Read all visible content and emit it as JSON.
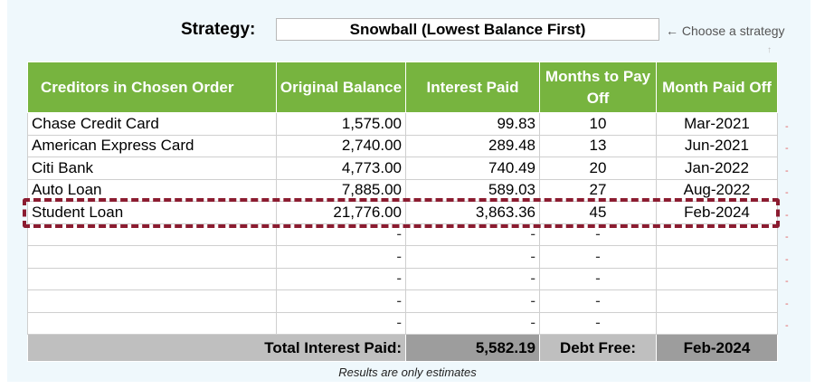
{
  "strategy": {
    "label": "Strategy:",
    "value": "Snowball (Lowest Balance First)",
    "hint": "← Choose a strategy",
    "hint_arrow": "↑"
  },
  "table": {
    "headers": {
      "creditors": "Creditors in Chosen Order",
      "original_balance": "Original Balance",
      "interest_paid": "Interest Paid",
      "months": "Months to Pay Off",
      "month_paid_off": "Month Paid Off"
    },
    "rows": [
      {
        "name": "Chase Credit Card",
        "balance": "1,575.00",
        "interest": "99.83",
        "months": "10",
        "paid_off": "Mar-2021"
      },
      {
        "name": "American Express Card",
        "balance": "2,740.00",
        "interest": "289.48",
        "months": "13",
        "paid_off": "Jun-2021"
      },
      {
        "name": "Citi Bank",
        "balance": "4,773.00",
        "interest": "740.49",
        "months": "20",
        "paid_off": "Jan-2022"
      },
      {
        "name": "Auto Loan",
        "balance": "7,885.00",
        "interest": "589.03",
        "months": "27",
        "paid_off": "Aug-2022"
      },
      {
        "name": "Student Loan",
        "balance": "21,776.00",
        "interest": "3,863.36",
        "months": "45",
        "paid_off": "Feb-2024"
      },
      {
        "name": "",
        "balance": "-",
        "interest": "-",
        "months": "-",
        "paid_off": ""
      },
      {
        "name": "",
        "balance": "-",
        "interest": "-",
        "months": "-",
        "paid_off": ""
      },
      {
        "name": "",
        "balance": "-",
        "interest": "-",
        "months": "-",
        "paid_off": ""
      },
      {
        "name": "",
        "balance": "-",
        "interest": "-",
        "months": "-",
        "paid_off": ""
      },
      {
        "name": "",
        "balance": "-",
        "interest": "-",
        "months": "-",
        "paid_off": ""
      }
    ],
    "totals": {
      "interest_label": "Total Interest Paid:",
      "interest_value": "5,582.19",
      "debt_free_label": "Debt Free:",
      "debt_free_value": "Feb-2024"
    }
  },
  "side_marks": [
    "-",
    "-",
    "-",
    "-",
    "-",
    "-",
    "-",
    "-",
    "-",
    "-"
  ],
  "note": "Results are only estimates",
  "colors": {
    "header_green": "#77b43f",
    "highlight_border": "#8b1c30",
    "total_gray": "#bfbfbf",
    "total_dark": "#9d9d9d"
  }
}
